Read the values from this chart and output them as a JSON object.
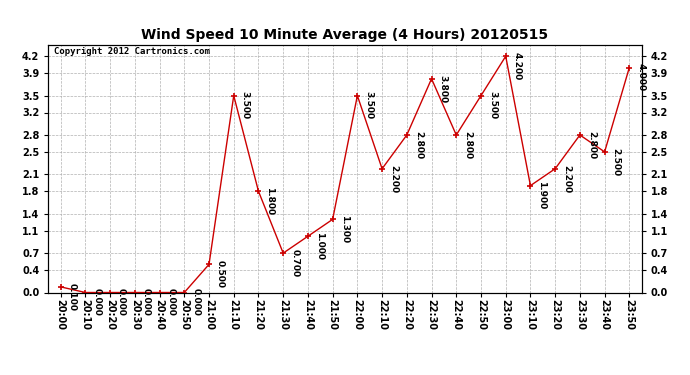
{
  "title": "Wind Speed 10 Minute Average (4 Hours) 20120515",
  "copyright": "Copyright 2012 Cartronics.com",
  "x_labels": [
    "20:00",
    "20:10",
    "20:20",
    "20:30",
    "20:40",
    "20:50",
    "21:00",
    "21:10",
    "21:20",
    "21:30",
    "21:40",
    "21:50",
    "22:00",
    "22:10",
    "22:20",
    "22:30",
    "22:40",
    "22:50",
    "23:00",
    "23:10",
    "23:20",
    "23:30",
    "23:40",
    "23:50"
  ],
  "y_values": [
    0.1,
    0.0,
    0.0,
    0.0,
    0.0,
    0.0,
    0.5,
    3.5,
    1.8,
    0.7,
    1.0,
    1.3,
    3.5,
    2.2,
    2.8,
    3.8,
    2.8,
    3.5,
    4.2,
    1.9,
    2.2,
    2.8,
    2.5,
    4.0
  ],
  "y_labels": [
    "0.100",
    "0.000",
    "0.000",
    "0.000",
    "0.000",
    "0.000",
    "0.500",
    "3.500",
    "1.800",
    "0.700",
    "1.000",
    "1.300",
    "3.500",
    "2.200",
    "2.800",
    "3.800",
    "2.800",
    "3.500",
    "4.200",
    "1.900",
    "2.200",
    "2.800",
    "2.500",
    "4.000"
  ],
  "ylim": [
    0.0,
    4.4
  ],
  "yticks": [
    0.0,
    0.4,
    0.7,
    1.1,
    1.4,
    1.8,
    2.1,
    2.5,
    2.8,
    3.2,
    3.5,
    3.9,
    4.2
  ],
  "line_color": "#cc0000",
  "marker_color": "#cc0000",
  "bg_color": "#ffffff",
  "plot_bg_color": "#ffffff",
  "grid_color": "#b0b0b0",
  "title_fontsize": 10,
  "label_fontsize": 6.5,
  "tick_fontsize": 7,
  "copyright_fontsize": 6.5
}
